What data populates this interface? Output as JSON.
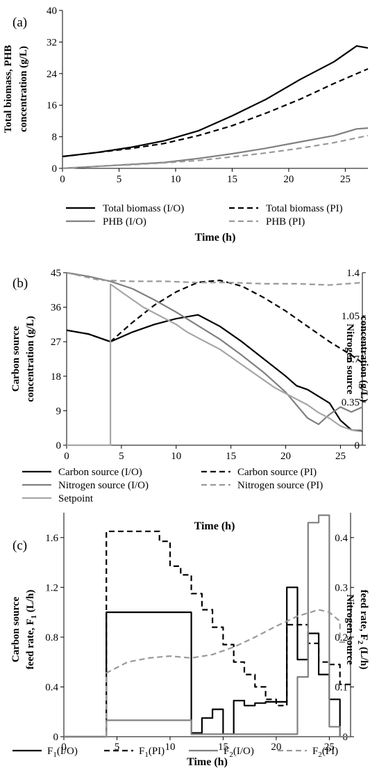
{
  "chart_data": [
    {
      "panel": "(a)",
      "type": "line",
      "xlabel": "Time (h)",
      "ylabel": [
        "Total biomass, PHB",
        "concentration (g/L)"
      ],
      "xlim": [
        0,
        27
      ],
      "ylim": [
        0,
        40
      ],
      "xticks": [
        "0",
        "5",
        "10",
        "15",
        "20",
        "25"
      ],
      "yticks": [
        "0",
        "8",
        "16",
        "24",
        "32",
        "40"
      ],
      "series": [
        {
          "name": "Total biomass (I/O)",
          "axis": "left",
          "style": "solid",
          "color": "#000000",
          "x": [
            0,
            3,
            6,
            9,
            12,
            15,
            18,
            21,
            24,
            26,
            27
          ],
          "y": [
            3,
            4,
            5.3,
            7,
            9.5,
            13.3,
            17.5,
            22.5,
            27,
            31,
            30.5
          ]
        },
        {
          "name": "Total biomass (PI)",
          "axis": "left",
          "style": "dashed",
          "color": "#000000",
          "x": [
            0,
            3,
            6,
            9,
            12,
            15,
            18,
            21,
            24,
            27
          ],
          "y": [
            3,
            4,
            5,
            6.3,
            8.3,
            10.8,
            14,
            17.5,
            21.5,
            25.2
          ]
        },
        {
          "name": "PHB (I/O)",
          "axis": "left",
          "style": "solid",
          "color": "#808080",
          "x": [
            0,
            3,
            6,
            9,
            12,
            15,
            18,
            21,
            24,
            26,
            27
          ],
          "y": [
            0,
            0.5,
            1,
            1.5,
            2.5,
            3.7,
            5.1,
            6.7,
            8.3,
            10,
            10.2
          ]
        },
        {
          "name": "PHB (PI)",
          "axis": "left",
          "style": "dashed",
          "color": "#999999",
          "x": [
            0,
            3,
            6,
            9,
            12,
            15,
            18,
            21,
            24,
            27
          ],
          "y": [
            0,
            0.5,
            0.9,
            1.4,
            2,
            2.9,
            3.9,
            5.1,
            6.5,
            8.3
          ]
        }
      ],
      "legend": {
        "placement": "below-plot",
        "rows": [
          [
            "Total biomass (I/O)",
            "Total biomass (PI)"
          ],
          [
            "PHB (I/O)",
            "PHB (PI)"
          ]
        ]
      }
    },
    {
      "panel": "(b)",
      "type": "line",
      "xlabel": "Time (h)",
      "ylabel": [
        "Carbon source",
        "concentration (g/L)"
      ],
      "ylabel_right": [
        "Nitrogen source",
        "concentration (g/L)"
      ],
      "xlim": [
        0,
        27
      ],
      "ylim": [
        0,
        45
      ],
      "ylim_right": [
        0,
        1.4
      ],
      "xticks": [
        "0",
        "5",
        "10",
        "15",
        "20",
        "25"
      ],
      "yticks": [
        "0",
        "9",
        "18",
        "27",
        "36",
        "45"
      ],
      "yticks_right": [
        "0",
        "0.35",
        "0.7",
        "1.05",
        "1.4"
      ],
      "series": [
        {
          "name": "Carbon source (I/O)",
          "axis": "left",
          "style": "solid",
          "color": "#000000",
          "x": [
            0,
            2,
            4,
            6,
            8,
            10,
            12,
            14,
            16,
            18,
            20,
            21,
            22,
            24,
            25,
            26,
            27
          ],
          "y": [
            30,
            29,
            27,
            29.5,
            31.5,
            33,
            34,
            31,
            27,
            22.5,
            18,
            15.5,
            14.5,
            11,
            6.5,
            4,
            3.8
          ]
        },
        {
          "name": "Carbon source (PI)",
          "axis": "left",
          "style": "dashed",
          "color": "#000000",
          "x": [
            0,
            2,
            4,
            6,
            8,
            10,
            12,
            14,
            16,
            18,
            20,
            22,
            24,
            26,
            27
          ],
          "y": [
            30,
            29,
            27,
            32,
            36.5,
            40,
            42.5,
            43,
            41.5,
            38.5,
            35,
            31,
            27,
            23.5,
            21.5
          ]
        },
        {
          "name": "Nitrogen source (I/O)",
          "axis": "right",
          "style": "solid",
          "color": "#808080",
          "x": [
            0,
            2,
            4,
            6,
            8,
            10,
            12,
            14,
            16,
            18,
            20,
            22,
            23,
            24,
            25,
            26,
            27
          ],
          "y": [
            1.4,
            1.37,
            1.33,
            1.27,
            1.18,
            1.08,
            0.97,
            0.86,
            0.73,
            0.59,
            0.43,
            0.22,
            0.17,
            0.25,
            0.31,
            0.27,
            0.31
          ]
        },
        {
          "name": "Nitrogen source (PI)",
          "axis": "right",
          "style": "dashed",
          "color": "#999999",
          "x": [
            0,
            3,
            6,
            9,
            12,
            15,
            18,
            21,
            24,
            27
          ],
          "y": [
            1.4,
            1.34,
            1.33,
            1.33,
            1.32,
            1.32,
            1.31,
            1.31,
            1.3,
            1.32
          ]
        },
        {
          "name": "Setpoint",
          "axis": "left",
          "style": "step",
          "color": "#a6a6a6",
          "x": [
            0,
            4,
            4,
            5,
            6,
            7,
            8,
            9,
            10,
            11,
            12,
            13,
            14,
            15,
            16,
            17,
            18,
            19,
            20,
            21,
            22,
            23,
            24,
            25,
            26,
            27
          ],
          "y": [
            0,
            0,
            42,
            40,
            38,
            36,
            34.5,
            33,
            31.5,
            29.5,
            28,
            26.5,
            25,
            23,
            21,
            19,
            17,
            15,
            13.5,
            12,
            10.5,
            8.5,
            7,
            5,
            4,
            4
          ]
        }
      ],
      "legend": {
        "placement": "below-plot",
        "rows": [
          [
            "Carbon source (I/O)",
            "Carbon source (PI)"
          ],
          [
            "Nitrogen source (I/O)",
            "Nitrogen source (PI)"
          ],
          [
            "Setpoint"
          ]
        ]
      }
    },
    {
      "panel": "(c)",
      "type": "line",
      "xlabel": "Time (h)",
      "ylabel": [
        "Carbon source",
        "feed rate, F1 (L/h)"
      ],
      "ylabel_right": [
        "Nitrogen source",
        "feed rate, F2 (L/h)"
      ],
      "xlim": [
        0,
        27
      ],
      "ylim": [
        0,
        1.8
      ],
      "ylim_right": [
        0,
        0.45
      ],
      "xticks": [
        "0",
        "5",
        "10",
        "15",
        "20",
        "25"
      ],
      "yticks": [
        "0",
        "0.4",
        "0.8",
        "1.2",
        "1.6"
      ],
      "yticks_right": [
        "0",
        "0.1",
        "0.2",
        "0.3",
        "0.4"
      ],
      "series": [
        {
          "name": "F1(I/O)",
          "axis": "left",
          "style": "step",
          "color": "#000000",
          "x": [
            0,
            4,
            4,
            12,
            12,
            13,
            13,
            14,
            14,
            15,
            15,
            16,
            16,
            17,
            17,
            18,
            18,
            19,
            19,
            21,
            21,
            22,
            22,
            23,
            23,
            24,
            24,
            25,
            25,
            26,
            26
          ],
          "y": [
            0,
            0,
            1,
            1,
            0.03,
            0.03,
            0.15,
            0.15,
            0.22,
            0.22,
            0.02,
            0.02,
            0.29,
            0.29,
            0.25,
            0.25,
            0.27,
            0.27,
            0.28,
            0.28,
            1.2,
            1.2,
            0.62,
            0.62,
            0.83,
            0.83,
            0.5,
            0.5,
            0.3,
            0.3,
            0
          ]
        },
        {
          "name": "F1(PI)",
          "axis": "left",
          "style": "dashed-step",
          "color": "#000000",
          "x": [
            4,
            4,
            9,
            9,
            10,
            10,
            11,
            11,
            12,
            12,
            13,
            13,
            14,
            14,
            15,
            15,
            16,
            16,
            17,
            17,
            18,
            18,
            19,
            19,
            20,
            20,
            21,
            21,
            23,
            23,
            24,
            24,
            25,
            25,
            26,
            26,
            27
          ],
          "y": [
            0,
            1.65,
            1.65,
            1.57,
            1.57,
            1.37,
            1.37,
            1.3,
            1.3,
            1.15,
            1.15,
            1.02,
            1.02,
            0.88,
            0.88,
            0.74,
            0.74,
            0.6,
            0.6,
            0.5,
            0.5,
            0.4,
            0.4,
            0.3,
            0.3,
            0.25,
            0.25,
            0.9,
            0.9,
            0.75,
            0.75,
            0.6,
            0.6,
            0.58,
            0.58,
            0.42,
            0.42
          ]
        },
        {
          "name": "F2(I/O)",
          "axis": "right",
          "style": "step",
          "color": "#808080",
          "x": [
            0,
            4,
            4,
            12,
            12,
            22,
            22,
            23,
            23,
            24,
            24,
            25,
            25,
            26,
            26,
            27
          ],
          "y": [
            0,
            0,
            0.033,
            0.033,
            0.005,
            0.005,
            0.12,
            0.12,
            0.43,
            0.43,
            0.445,
            0.445,
            0.02,
            0.02,
            0,
            0
          ]
        },
        {
          "name": "F2(PI)",
          "axis": "right",
          "style": "dashed",
          "color": "#999999",
          "x": [
            4,
            4,
            6,
            8,
            10,
            12,
            14,
            16,
            18,
            20,
            22,
            24,
            25,
            26,
            26,
            27
          ],
          "y": [
            0,
            0.128,
            0.15,
            0.158,
            0.162,
            0.158,
            0.165,
            0.18,
            0.2,
            0.222,
            0.242,
            0.255,
            0.25,
            0.232,
            0.19,
            0.19
          ]
        }
      ],
      "legend": {
        "placement": "below-plot",
        "rows": [
          [
            "F1(I/O)",
            "F1(PI)",
            "F2(I/O)",
            "F2(PI)"
          ]
        ]
      }
    }
  ]
}
